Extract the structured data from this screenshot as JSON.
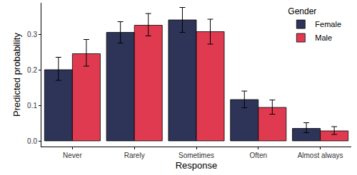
{
  "chart_data": {
    "type": "bar",
    "x_label": "Response",
    "y_label": "Predicted probability",
    "categories": [
      "Never",
      "Rarely",
      "Sometimes",
      "Often",
      "Almost always"
    ],
    "legend_title": "Gender",
    "legend": "top right",
    "grid": false,
    "ylim": [
      -0.016,
      0.388
    ],
    "yticks": [
      {
        "value": 0,
        "label": "0.0"
      },
      0.1,
      0.2,
      0.3
    ],
    "series": [
      {
        "name": "Female",
        "color": "#2e3458",
        "values": [
          0.2,
          0.305,
          0.34,
          0.116,
          0.035
        ],
        "lower": [
          0.17,
          0.275,
          0.305,
          0.093,
          0.023
        ],
        "upper": [
          0.235,
          0.335,
          0.375,
          0.14,
          0.051
        ]
      },
      {
        "name": "Male",
        "color": "#e03a50",
        "values": [
          0.245,
          0.325,
          0.307,
          0.094,
          0.028
        ],
        "lower": [
          0.21,
          0.295,
          0.272,
          0.075,
          0.018
        ],
        "upper": [
          0.285,
          0.358,
          0.342,
          0.115,
          0.04
        ]
      }
    ]
  }
}
